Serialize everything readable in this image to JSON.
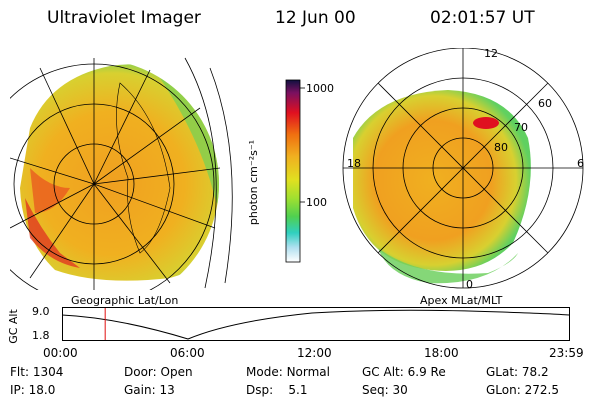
{
  "header": {
    "title": "Ultraviolet Imager",
    "date": "12 Jun 00",
    "time": "02:01:57 UT"
  },
  "colorbar": {
    "unit_label": "photon cm⁻²s⁻¹",
    "tick_labels": [
      "1000",
      "100"
    ]
  },
  "left_panel": {
    "caption": "Geographic Lat/Lon"
  },
  "right_panel": {
    "caption": "Apex MLat/MLT",
    "mlt_labels": [
      "12",
      "18",
      "6",
      "0"
    ],
    "mlat_labels": [
      "60",
      "70",
      "80"
    ]
  },
  "altitude_plot": {
    "ylabel": "GC Alt",
    "y_ticks": [
      "9.0",
      "1.8"
    ],
    "x_ticks": [
      "00:00",
      "06:00",
      "12:00",
      "18:00",
      "23:59"
    ],
    "current_time_fraction": 0.085
  },
  "info": {
    "flt_label": "Flt:",
    "flt_value": "1304",
    "ip_label": "IP:",
    "ip_value": "18.0",
    "door_label": "Door:",
    "door_value": "Open",
    "gain_label": "Gain:",
    "gain_value": "13",
    "mode_label": "Mode:",
    "mode_value": "Normal",
    "dsp_label": "Dsp:",
    "dsp_value": "5.1",
    "gcalt_label": "GC Alt:",
    "gcalt_value": "6.9 Re",
    "seq_label": "Seq:",
    "seq_value": "30",
    "glat_label": "GLat:",
    "glat_value": "78.2",
    "glon_label": "GLon:",
    "glon_value": "272.5"
  }
}
